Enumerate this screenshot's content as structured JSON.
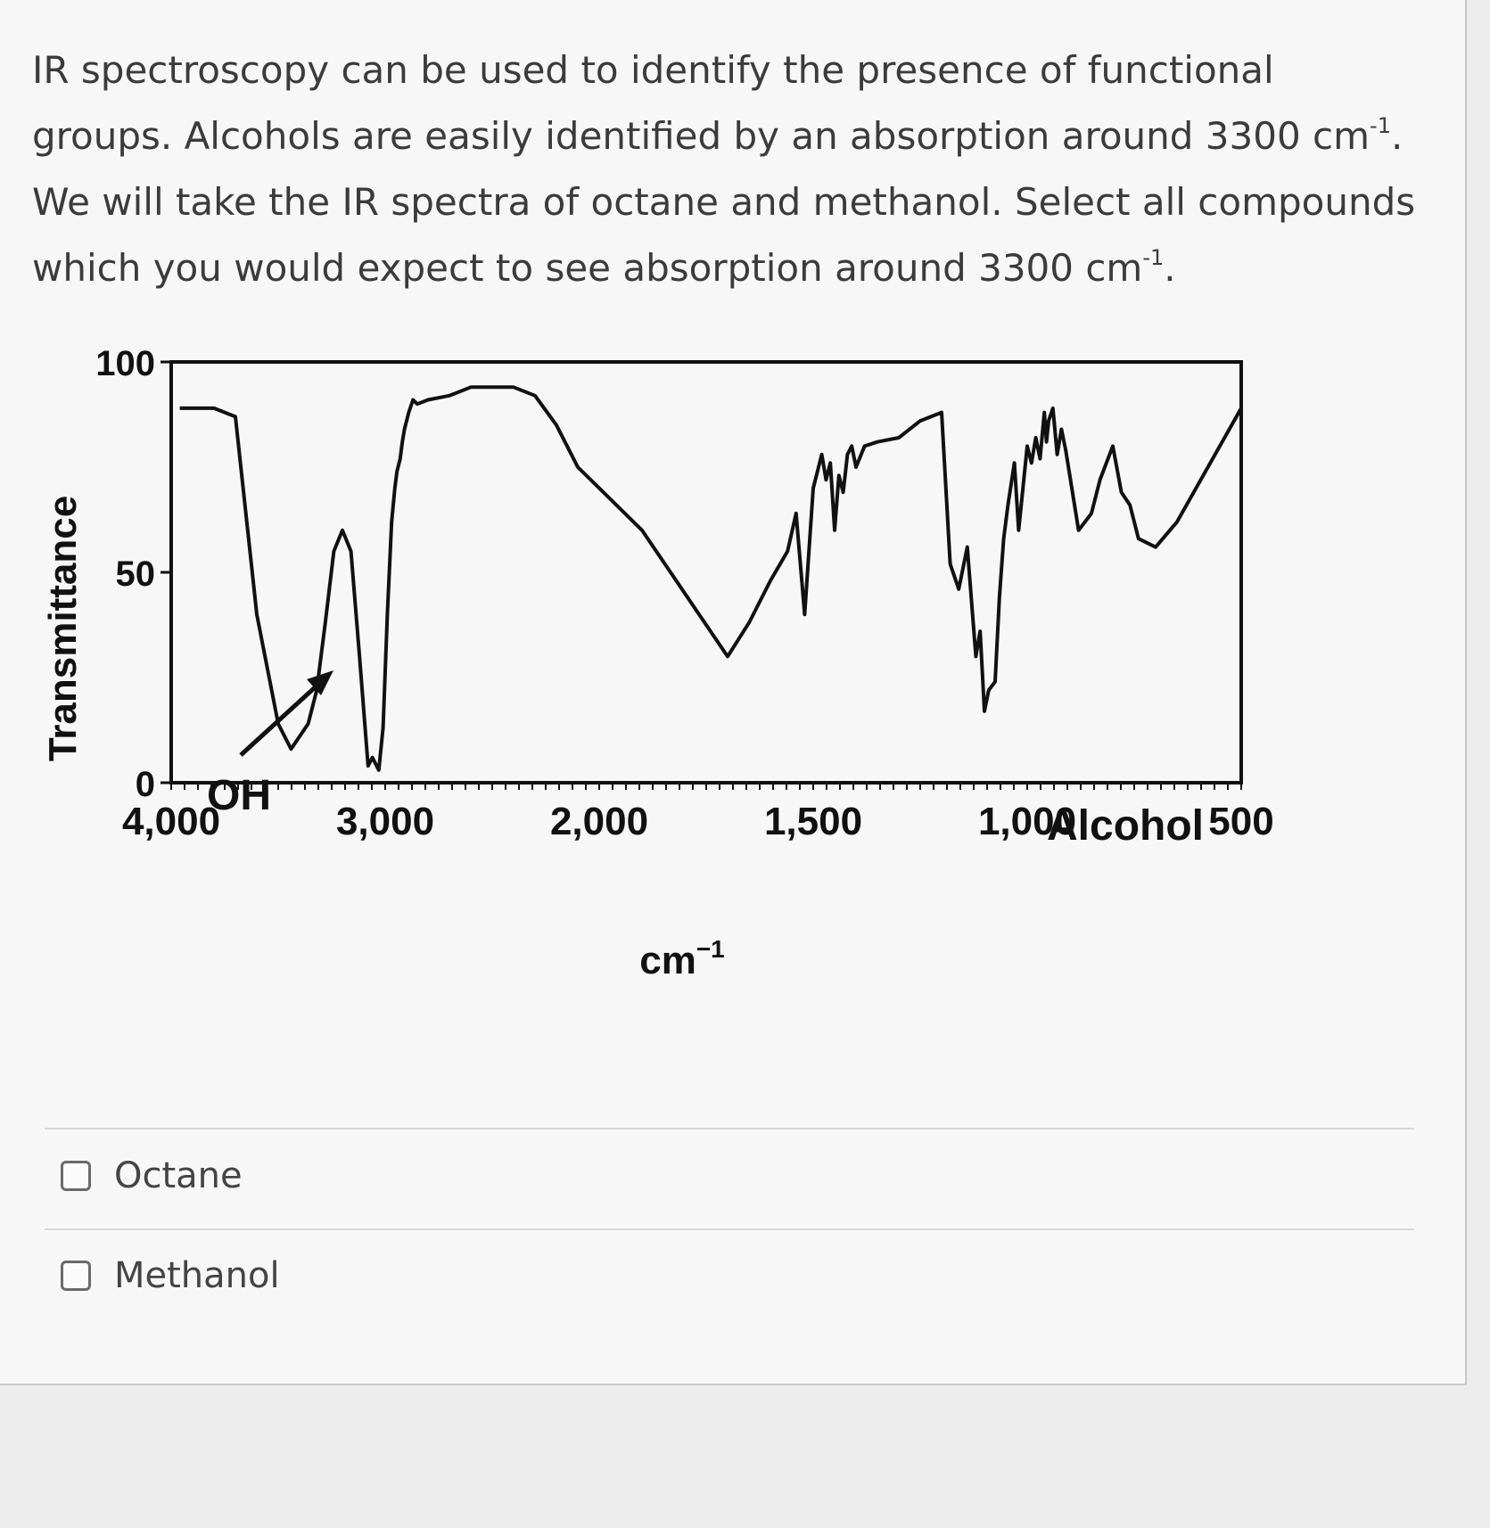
{
  "question": {
    "line1": "IR spectroscopy can be used to identify the presence of functional",
    "line2_pre": "groups. Alcohols are easily identified by an absorption around 3300 cm",
    "line2_sup": "-1",
    "line2_post": ".",
    "line3": "We will take the IR spectra of octane and methanol. Select all compounds",
    "line4_pre": "which you would expect to see absorption around 3300 cm",
    "line4_sup": "-1",
    "line4_post": "."
  },
  "figure": {
    "y_axis_label": "Transmittance",
    "x_axis_label_base": "cm",
    "x_axis_label_sup": "−1",
    "curve_label": "Alcohol",
    "arrow_label": "OH"
  },
  "chart_data": {
    "type": "line",
    "title": "",
    "xlabel": "cm−1",
    "ylabel": "Transmittance",
    "ylim": [
      0,
      100
    ],
    "xlim": [
      4000,
      500
    ],
    "x_axis_scale": "piecewise linear (4000–2000 at half the scale of 2000–500)",
    "y_tick_labels": [
      "0",
      "50",
      "100"
    ],
    "y_tick_values": [
      0,
      50,
      100
    ],
    "x_tick_labels": [
      "4,000",
      "3,000",
      "2,000",
      "1,500",
      "1,000",
      "500"
    ],
    "x_tick_values": [
      4000,
      3000,
      2000,
      1500,
      1000,
      500
    ],
    "annotations": [
      "OH",
      "Alcohol"
    ],
    "series": [
      {
        "x": [
          3960,
          3800,
          3700,
          3600,
          3500,
          3440,
          3360,
          3320,
          3280,
          3240,
          3200,
          3160,
          3120,
          3080,
          3060,
          3030,
          3010,
          2990,
          2970,
          2955,
          2945,
          2930,
          2920,
          2910,
          2890,
          2870,
          2850,
          2800,
          2700,
          2600,
          2500,
          2400,
          2300,
          2200,
          2100,
          2000,
          1900,
          1800,
          1700,
          1650,
          1600,
          1560,
          1540,
          1520,
          1500,
          1480,
          1470,
          1460,
          1455,
          1450,
          1440,
          1430,
          1420,
          1410,
          1400,
          1380,
          1350,
          1300,
          1250,
          1200,
          1180,
          1160,
          1140,
          1120,
          1110,
          1100,
          1090,
          1075,
          1065,
          1055,
          1045,
          1030,
          1020,
          1000,
          990,
          980,
          970,
          960,
          955,
          950,
          940,
          930,
          920,
          910,
          880,
          850,
          830,
          800,
          780,
          760,
          740,
          700,
          650,
          600,
          550,
          500
        ],
        "y": [
          89,
          89,
          87,
          40,
          14,
          8,
          14,
          22,
          38,
          55,
          60,
          55,
          30,
          4,
          6,
          3,
          13,
          40,
          62,
          70,
          74,
          77,
          81,
          84,
          88,
          91,
          90,
          91,
          92,
          94,
          94,
          94,
          92,
          85,
          75,
          70,
          60,
          45,
          30,
          38,
          48,
          55,
          64,
          40,
          70,
          78,
          72,
          76,
          68,
          60,
          73,
          69,
          78,
          80,
          75,
          80,
          81,
          82,
          86,
          88,
          52,
          46,
          56,
          30,
          36,
          17,
          22,
          24,
          44,
          58,
          66,
          76,
          60,
          80,
          76,
          82,
          77,
          88,
          81,
          86,
          89,
          78,
          84,
          79,
          60,
          64,
          72,
          80,
          69,
          66,
          58,
          56,
          62,
          71,
          80,
          89
        ]
      }
    ]
  },
  "choices": [
    {
      "label": "Octane",
      "checked": false
    },
    {
      "label": "Methanol",
      "checked": false
    }
  ]
}
